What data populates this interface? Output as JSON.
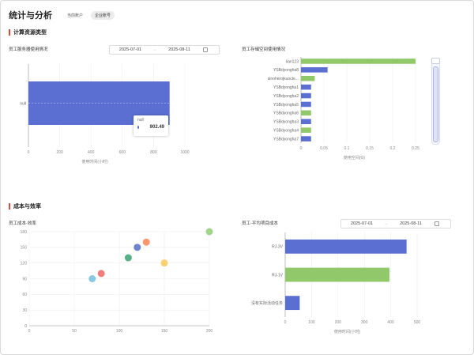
{
  "header": {
    "title": "统计与分析",
    "tabs": [
      {
        "label": "当前账户",
        "active": false
      },
      {
        "label": "企业账号",
        "active": true
      }
    ]
  },
  "sections": {
    "compute": "计算资源类型",
    "cost": "成本与效率"
  },
  "cards": {
    "server_usage": {
      "title": "员工服务器使用情况",
      "date_start": "2025-07-01",
      "date_sep": "→",
      "date_end": "2025-08-11",
      "tooltip": {
        "label": "null",
        "value": "902.49"
      }
    },
    "storage_usage": {
      "title": "员工存储空间使用情况"
    },
    "cost_efficiency": {
      "title": "员工成本-效率"
    },
    "avg_cost": {
      "title": "员工-平均项目成本",
      "date_start": "2025-07-01",
      "date_sep": "→",
      "date_end": "2025-08-11"
    }
  },
  "chart_data": [
    {
      "type": "bar",
      "orientation": "horizontal",
      "categories": [
        "null"
      ],
      "values": [
        902.49
      ],
      "xlabel": "使用时间(小时)",
      "xlim": [
        0,
        1000
      ],
      "xticks": [
        0,
        200,
        400,
        600,
        800,
        1000
      ],
      "color": "#5b6fd3"
    },
    {
      "type": "bar",
      "orientation": "horizontal",
      "categories": [
        "lian123",
        "YSBdyongha8",
        "sinoherojkuocte...",
        "YSBdyongha1",
        "YSBdyongha2",
        "YSBdyongha5",
        "YSBdyongha6",
        "YSBdyongha3",
        "YSBdyongha4",
        "YSBdyongha7"
      ],
      "values": [
        0.25,
        0.058,
        0.03,
        0.022,
        0.022,
        0.022,
        0.022,
        0.022,
        0.022,
        0.022
      ],
      "colors": [
        "#91c86a",
        "#5b6fd3",
        "#91c86a",
        "#5b6fd3",
        "#5b6fd3",
        "#5b6fd3",
        "#91c86a",
        "#5b6fd3",
        "#91c86a",
        "#5b6fd3"
      ],
      "xlabel": "使用空间(G)",
      "xlim": [
        0,
        0.25
      ],
      "xticks": [
        "0",
        "0.05",
        "0.1",
        "0.15",
        "0.2",
        "0.25"
      ]
    },
    {
      "type": "scatter",
      "points": [
        {
          "x": 70,
          "y": 90,
          "color": "#73c0de"
        },
        {
          "x": 80,
          "y": 100,
          "color": "#ee6666"
        },
        {
          "x": 110,
          "y": 130,
          "color": "#3ba272"
        },
        {
          "x": 120,
          "y": 150,
          "color": "#5470c6"
        },
        {
          "x": 130,
          "y": 160,
          "color": "#fc8452"
        },
        {
          "x": 150,
          "y": 120,
          "color": "#fac858"
        },
        {
          "x": 200,
          "y": 180,
          "color": "#91cc75"
        }
      ],
      "xlim": [
        0,
        200
      ],
      "ylim": [
        0,
        180
      ],
      "xticks": [
        0,
        50,
        100,
        150,
        200
      ],
      "yticks": [
        0,
        30,
        60,
        90,
        120,
        150,
        180
      ]
    },
    {
      "type": "bar",
      "orientation": "horizontal",
      "categories": [
        "RJ-3V",
        "RJ-1V",
        "没有实际活动任务"
      ],
      "values": [
        460,
        395,
        55
      ],
      "colors": [
        "#5b6fd3",
        "#91c86a",
        "#5b6fd3"
      ],
      "xlabel": "使用时间(小时)",
      "xlim": [
        0,
        500
      ],
      "xticks": [
        0,
        100,
        200,
        300,
        400,
        500
      ]
    }
  ]
}
